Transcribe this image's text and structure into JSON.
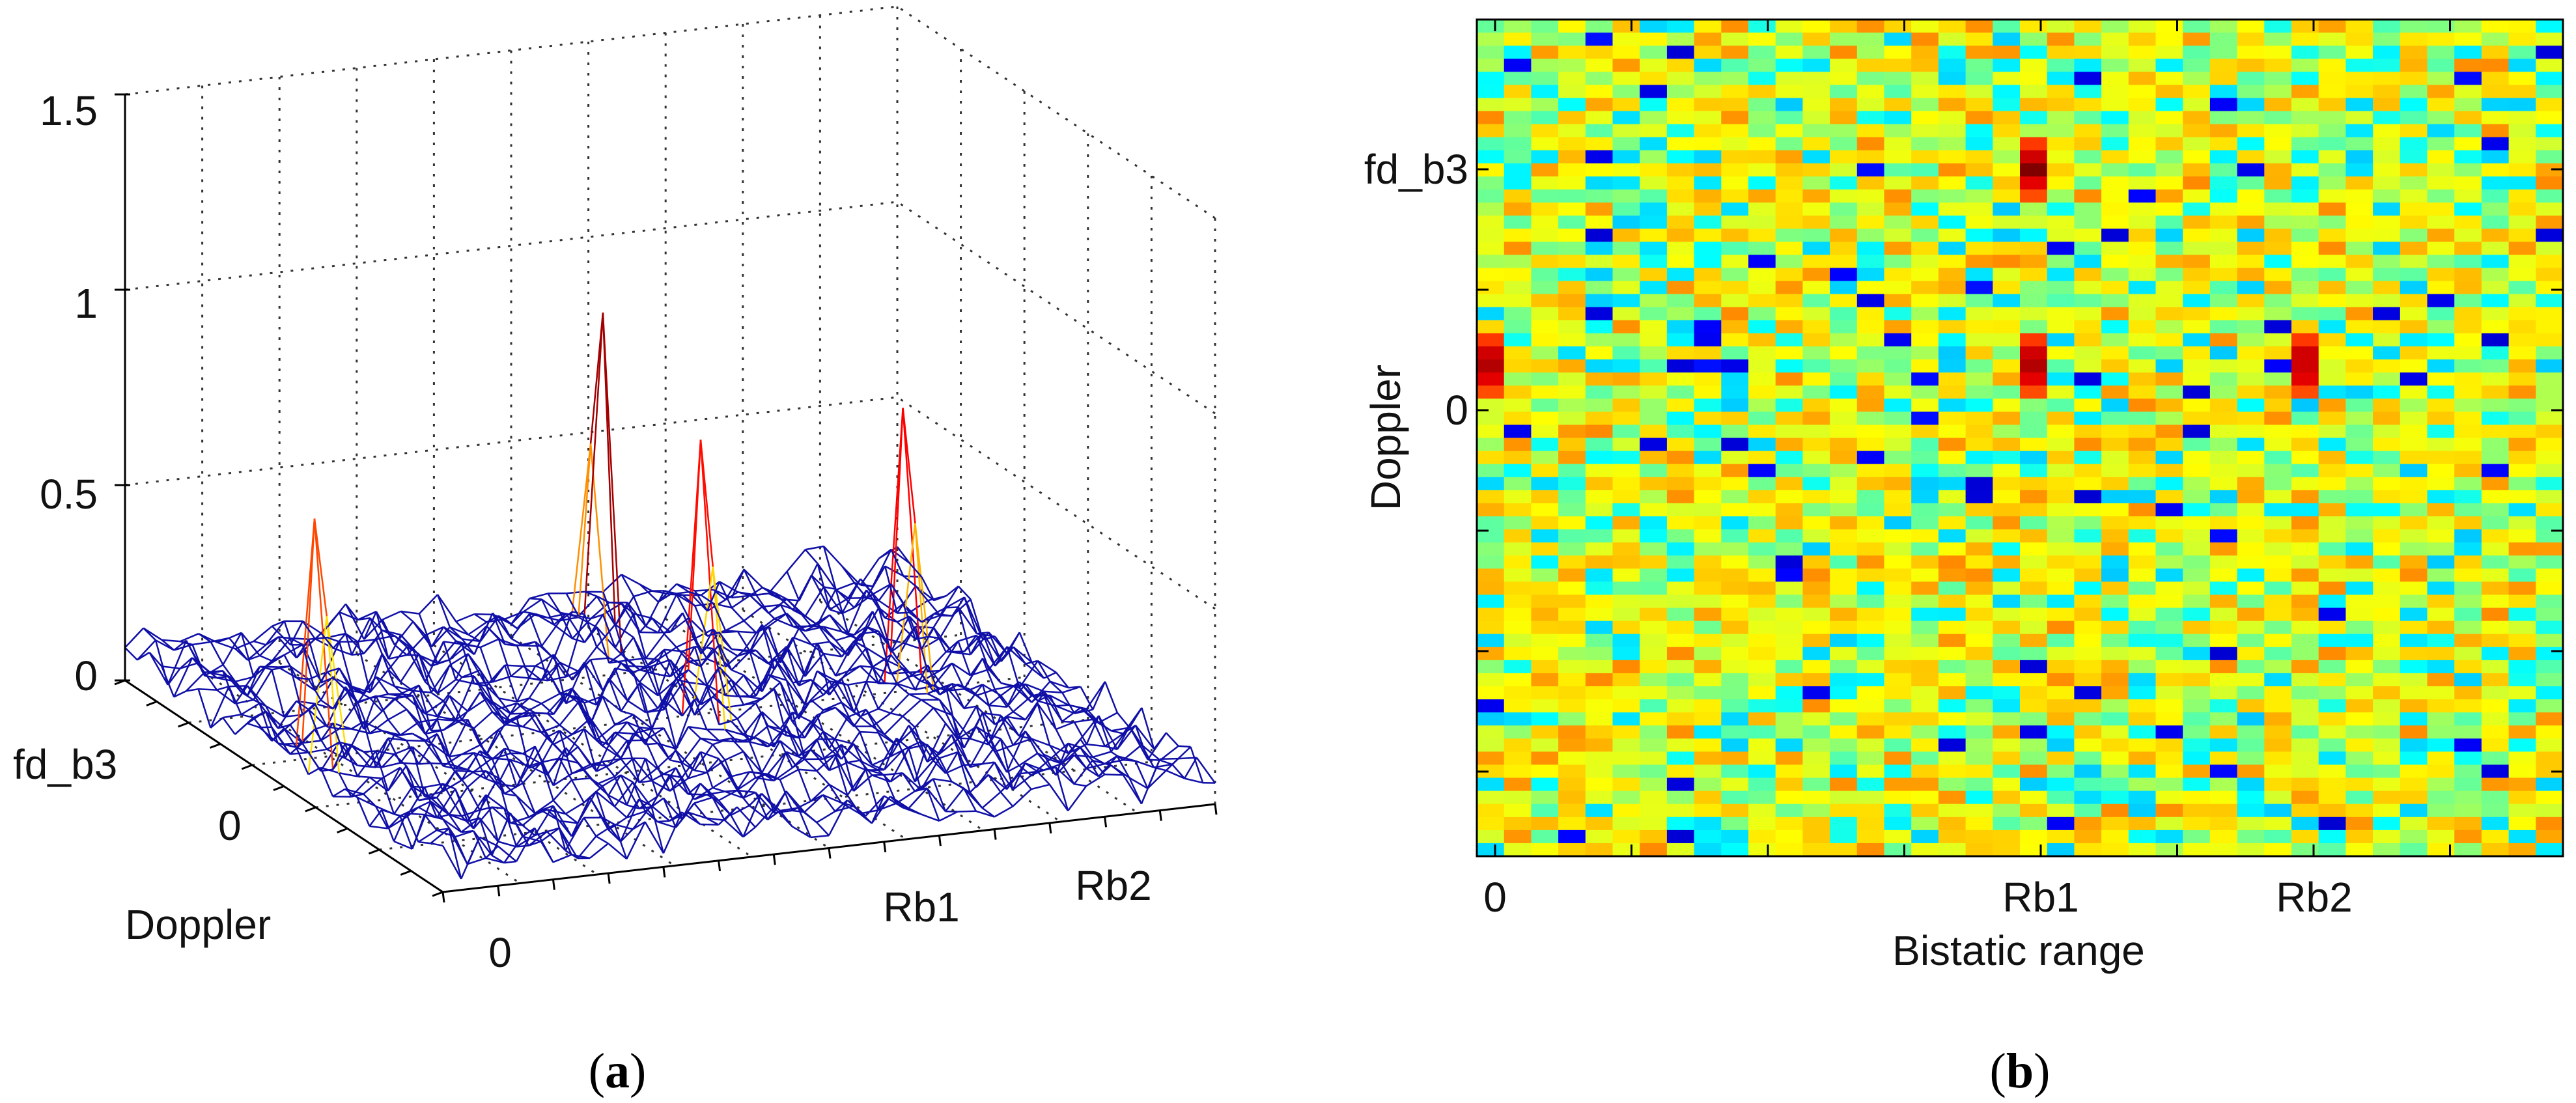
{
  "chart_data": [
    {
      "panel": "a",
      "type": "surface",
      "title": "",
      "zlabel": "",
      "xlabel": "",
      "ylabel": "Doppler",
      "zlim": [
        0,
        1.5
      ],
      "z_ticks": [
        "0",
        "0.5",
        "1",
        "1.5"
      ],
      "x_ticks": [
        "0",
        "Rb1",
        "Rb2"
      ],
      "y_ticks": [
        "fd_b3",
        "0"
      ],
      "grid": true,
      "noise_floor": 0.1,
      "peaks": [
        {
          "range": "0",
          "doppler": "0",
          "height": 0.72
        },
        {
          "range": "Rb1",
          "doppler": "fd_b3",
          "height": 1.0
        },
        {
          "range": "Rb1",
          "doppler": "0",
          "height": 0.9
        },
        {
          "range": "Rb2",
          "doppler": "0",
          "height": 0.97
        }
      ]
    },
    {
      "panel": "b",
      "type": "heatmap",
      "title": "",
      "xlabel": "Bistatic range",
      "ylabel": "Doppler",
      "x_ticks": [
        "0",
        "Rb1",
        "Rb2"
      ],
      "y_ticks": [
        "fd_b3",
        "0"
      ],
      "columns": 40,
      "rows": 64,
      "colormap": "jet",
      "peaks": [
        {
          "range": "Rb1",
          "doppler": "fd_b3",
          "value": 1.0
        },
        {
          "range": "0",
          "doppler": "0",
          "value": 0.95
        },
        {
          "range": "Rb1",
          "doppler": "0",
          "value": 0.95
        },
        {
          "range": "Rb2",
          "doppler": "0",
          "value": 0.92
        }
      ]
    }
  ],
  "labels": {
    "a": "(a)",
    "b": "(b)",
    "a_letter": "a",
    "b_letter": "b"
  }
}
